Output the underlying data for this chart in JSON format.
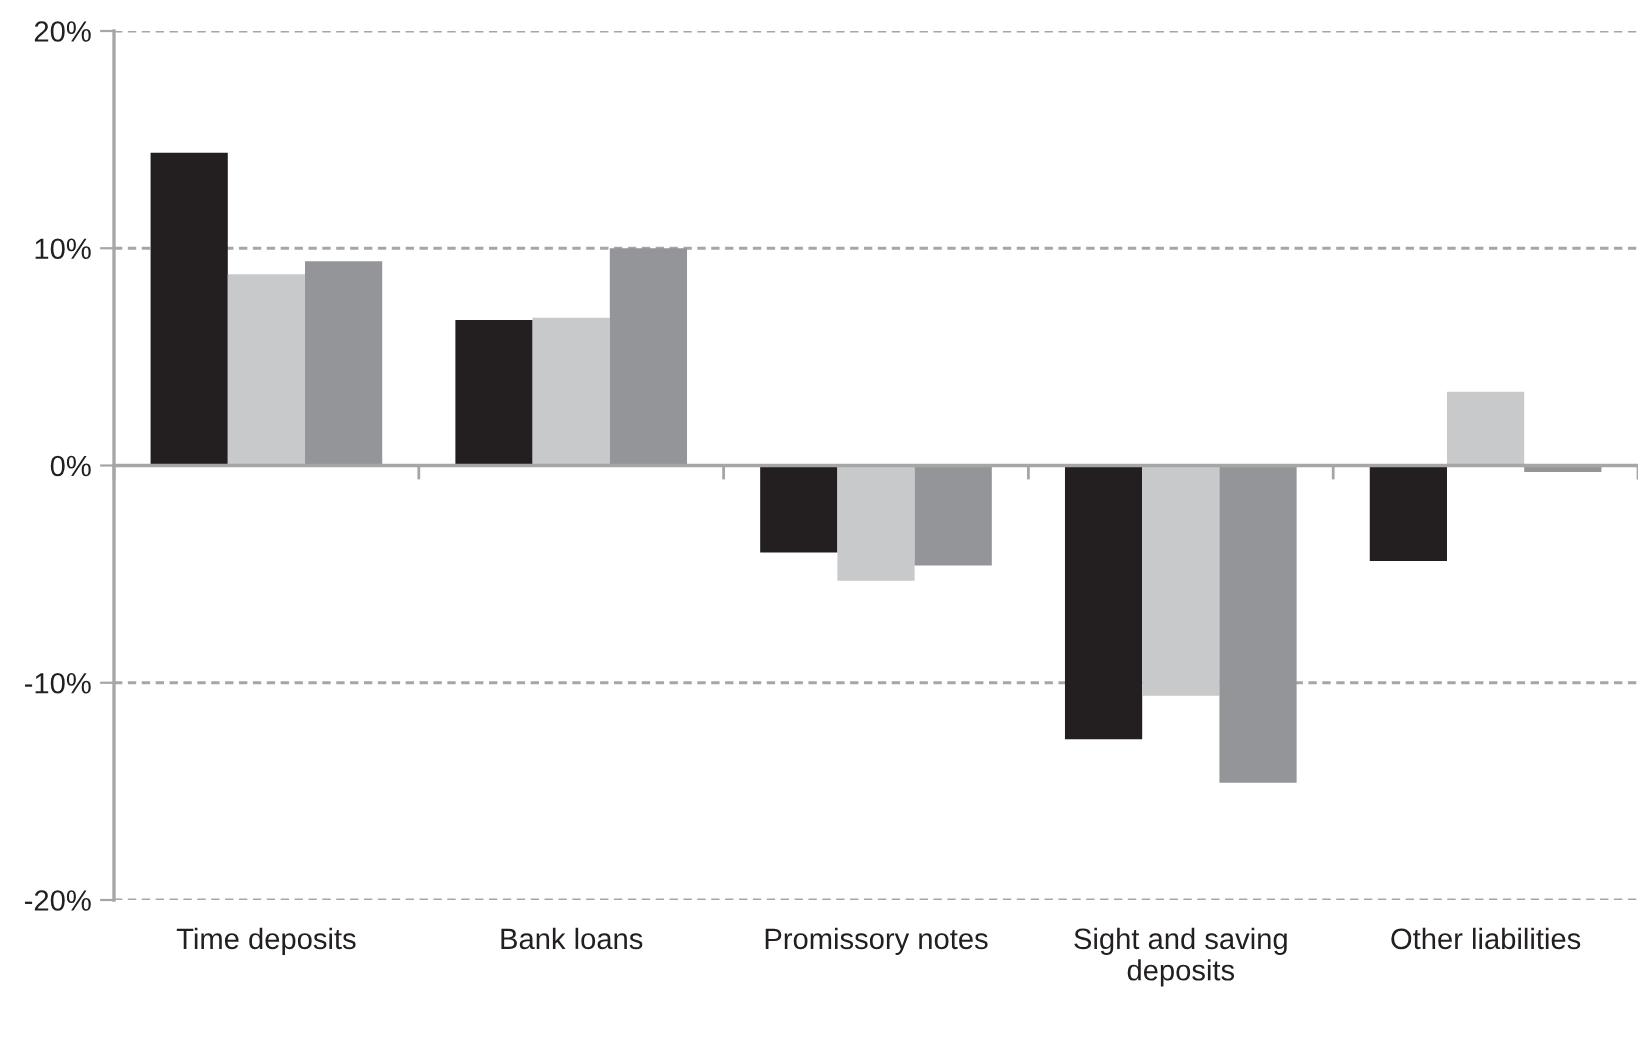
{
  "chart_data": {
    "type": "bar",
    "categories": [
      "Time deposits",
      "Bank loans",
      "Promissory notes",
      "Sight and saving\ndeposits",
      "Other liabilities"
    ],
    "series": [
      {
        "color": "#231f20",
        "values": [
          14.4,
          6.7,
          -4.0,
          -12.6,
          -4.4
        ]
      },
      {
        "color": "#c8c9cb",
        "values": [
          8.8,
          6.8,
          -5.3,
          -10.6,
          3.4
        ]
      },
      {
        "color": "#939598",
        "values": [
          9.4,
          10.0,
          -4.6,
          -14.6,
          -0.3
        ]
      }
    ],
    "ylim": [
      -20,
      20
    ],
    "yticks": [
      {
        "value": -20,
        "label": "-20%"
      },
      {
        "value": -10,
        "label": "-10%"
      },
      {
        "value": 0,
        "label": "0%"
      },
      {
        "value": 10,
        "label": "10%"
      },
      {
        "value": 20,
        "label": "20%"
      }
    ],
    "grid": "y"
  }
}
